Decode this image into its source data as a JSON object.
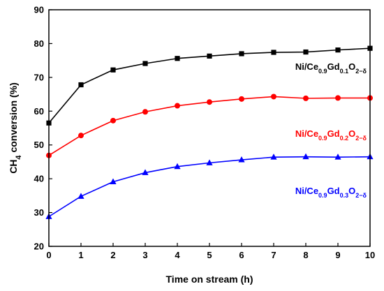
{
  "chart_data": {
    "type": "line",
    "xlabel": "Time on stream (h)",
    "ylabel": "CH4 conversion (%)",
    "xlim": [
      0,
      10
    ],
    "ylim": [
      20,
      90
    ],
    "x_ticks": [
      0,
      1,
      2,
      3,
      4,
      5,
      6,
      7,
      8,
      9,
      10
    ],
    "y_ticks": [
      20,
      30,
      40,
      50,
      60,
      70,
      80,
      90
    ],
    "grid": false,
    "x": [
      0,
      1,
      2,
      3,
      4,
      5,
      6,
      7,
      8,
      9,
      10
    ],
    "series": [
      {
        "name": "Ni/Ce0.9Gd0.1O2−δ",
        "label_parts": {
          "base": "Ni/Ce",
          "sub1": "0.9",
          "mid": "Gd",
          "sub2": "0.1",
          "o": "O",
          "sub3": "2−δ"
        },
        "color": "#000000",
        "marker": "square",
        "values": [
          56.5,
          67.8,
          72.2,
          74.1,
          75.6,
          76.3,
          77.0,
          77.4,
          77.5,
          78.1,
          78.6
        ]
      },
      {
        "name": "Ni/Ce0.9Gd0.2O2−δ",
        "label_parts": {
          "base": "Ni/Ce",
          "sub1": "0.9",
          "mid": "Gd",
          "sub2": "0.2",
          "o": "O",
          "sub3": "2−δ"
        },
        "color": "#ff0000",
        "marker": "circle",
        "values": [
          46.9,
          52.8,
          57.2,
          59.8,
          61.6,
          62.7,
          63.6,
          64.3,
          63.8,
          63.9,
          63.9
        ]
      },
      {
        "name": "Ni/Ce0.9Gd0.3O2−δ",
        "label_parts": {
          "base": "Ni/Ce",
          "sub1": "0.9",
          "mid": "Gd",
          "sub2": "0.3",
          "o": "O",
          "sub3": "2−δ"
        },
        "color": "#0000ff",
        "marker": "triangle",
        "values": [
          28.8,
          34.8,
          39.1,
          41.8,
          43.6,
          44.7,
          45.6,
          46.4,
          46.5,
          46.4,
          46.5
        ]
      }
    ]
  }
}
